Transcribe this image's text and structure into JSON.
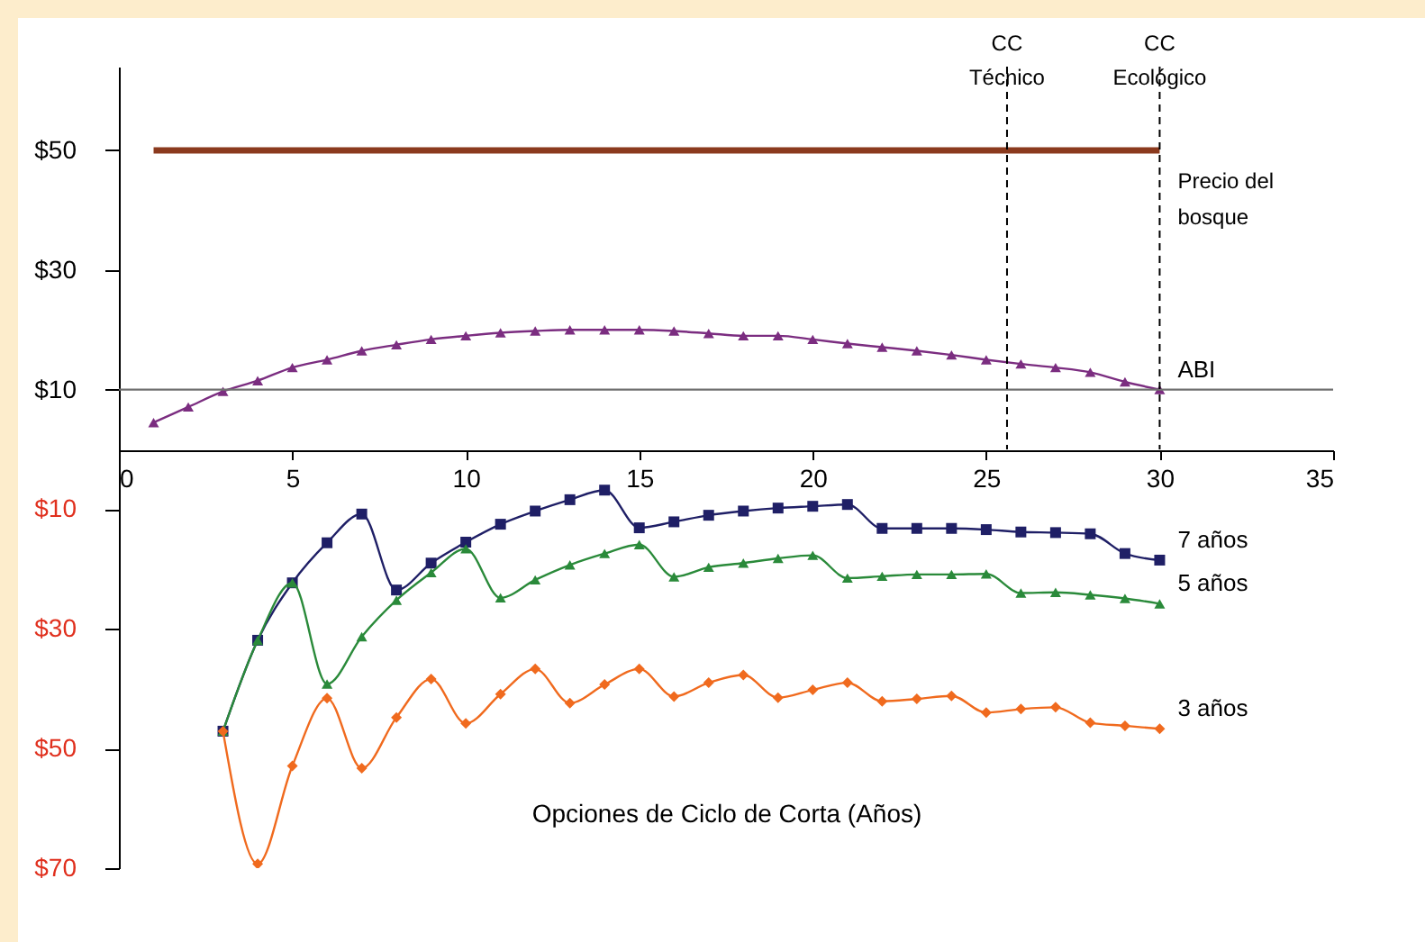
{
  "chart_data": {
    "type": "line",
    "xlabel": "Opciones de Ciclo de Corta (Años)",
    "xlim": [
      0,
      35
    ],
    "xticks": [
      0,
      5,
      10,
      15,
      20,
      25,
      30,
      35
    ],
    "ylim": [
      -70,
      64
    ],
    "yticks": [
      {
        "value": 50,
        "label": "$50"
      },
      {
        "value": 30,
        "label": "$30"
      },
      {
        "value": 10,
        "label": "$10"
      },
      {
        "value": -10,
        "label": "$10"
      },
      {
        "value": -30,
        "label": "$30"
      },
      {
        "value": -50,
        "label": "$50"
      },
      {
        "value": -70,
        "label": "$70"
      }
    ],
    "grid": false,
    "line_style": "solid",
    "series": [
      {
        "name": "Precio del bosque",
        "color": "#8b3a1e",
        "marker": "none",
        "x": [
          1,
          30
        ],
        "values": [
          50,
          50
        ]
      },
      {
        "name": "ABI",
        "color": "#7b2d80",
        "marker": "triangle",
        "x": [
          1,
          2,
          3,
          4,
          5,
          6,
          7,
          8,
          9,
          10,
          11,
          12,
          13,
          14,
          15,
          16,
          17,
          18,
          19,
          20,
          21,
          22,
          23,
          24,
          25,
          26,
          27,
          28,
          29,
          30
        ],
        "values": [
          4.5,
          7.1,
          9.7,
          11.5,
          13.7,
          15.0,
          16.5,
          17.5,
          18.4,
          19.0,
          19.5,
          19.8,
          20.0,
          20.0,
          20.0,
          19.8,
          19.4,
          19.0,
          19.0,
          18.4,
          17.7,
          17.1,
          16.5,
          15.8,
          15.0,
          14.3,
          13.7,
          12.9,
          11.3,
          10
        ]
      },
      {
        "name": "7 años",
        "color": "#1f1f66",
        "marker": "square",
        "x": [
          3,
          4,
          5,
          6,
          7,
          8,
          9,
          10,
          11,
          12,
          13,
          14,
          15,
          16,
          17,
          18,
          19,
          20,
          21,
          22,
          23,
          24,
          25,
          26,
          27,
          28,
          29,
          30
        ],
        "values": [
          -47.1,
          -31.9,
          -22.3,
          -15.6,
          -10.8,
          -23.5,
          -19.0,
          -15.5,
          -12.5,
          -10.3,
          -8.4,
          -6.8,
          -13.1,
          -12.1,
          -11.0,
          -10.3,
          -9.8,
          -9.5,
          -9.2,
          -13.2,
          -13.2,
          -13.2,
          -13.4,
          -13.8,
          -13.9,
          -14.1,
          -17.4,
          -18.5
        ]
      },
      {
        "name": "5 años",
        "color": "#2a8a3a",
        "marker": "triangle",
        "x": [
          3,
          4,
          5,
          6,
          7,
          8,
          9,
          10,
          11,
          12,
          13,
          14,
          15,
          16,
          17,
          18,
          19,
          20,
          21,
          22,
          23,
          24,
          25,
          26,
          27,
          28,
          29,
          30
        ],
        "values": [
          -47.1,
          -31.9,
          -22.3,
          -39.2,
          -31.3,
          -25.2,
          -20.6,
          -16.6,
          -24.8,
          -21.8,
          -19.3,
          -17.4,
          -15.9,
          -21.3,
          -19.7,
          -19.0,
          -18.2,
          -17.7,
          -21.5,
          -21.2,
          -20.9,
          -20.9,
          -20.8,
          -24.0,
          -23.9,
          -24.3,
          -24.9,
          -25.8
        ]
      },
      {
        "name": "3 años",
        "color": "#f06a1e",
        "marker": "diamond",
        "x": [
          3,
          4,
          5,
          6,
          7,
          8,
          9,
          10,
          11,
          12,
          13,
          14,
          15,
          16,
          17,
          18,
          19,
          20,
          21,
          22,
          23,
          24,
          25,
          26,
          27,
          28,
          29,
          30
        ],
        "values": [
          -47.1,
          -69.3,
          -52.9,
          -41.6,
          -53.3,
          -44.8,
          -38.4,
          -45.8,
          -40.9,
          -36.7,
          -42.4,
          -39.3,
          -36.7,
          -41.3,
          -39.0,
          -37.7,
          -41.5,
          -40.2,
          -39.0,
          -42.1,
          -41.7,
          -41.2,
          -44.0,
          -43.4,
          -43.1,
          -45.7,
          -46.2,
          -46.7
        ]
      }
    ],
    "ref_lines": [
      {
        "axis": "y",
        "value": 10,
        "label": null,
        "color": "#707070",
        "line_style": "solid"
      },
      {
        "axis": "x",
        "value": 25.6,
        "label": "CC Técnico",
        "color": "#000000",
        "line_style": "dashed"
      },
      {
        "axis": "x",
        "value": 30,
        "label": "CC Ecológico",
        "color": "#000000",
        "line_style": "dashed"
      }
    ]
  }
}
